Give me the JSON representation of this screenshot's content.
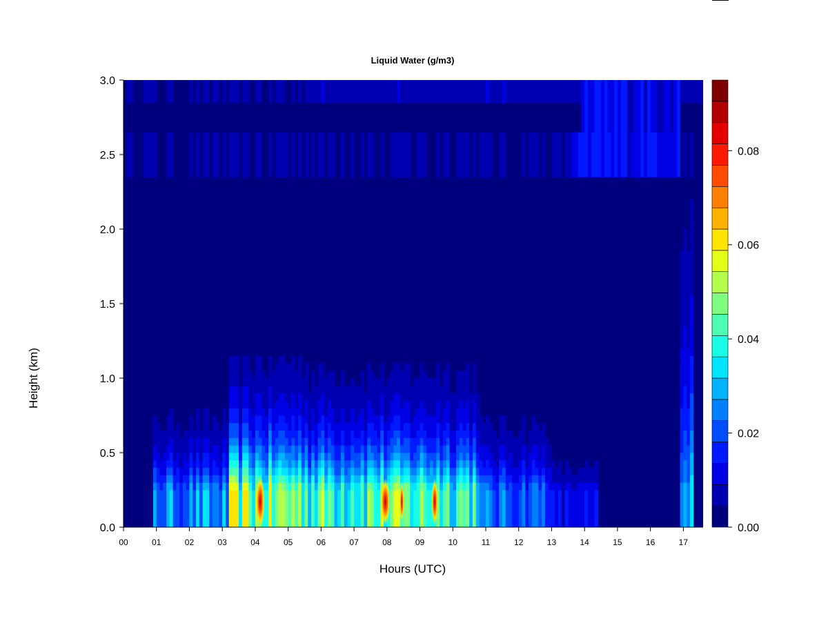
{
  "chart_data": {
    "type": "heatmap",
    "title": "Liquid Water (g/m3)",
    "xlabel": "Hours (UTC)",
    "ylabel": "Height (km)",
    "xlim": [
      0,
      17.6
    ],
    "ylim": [
      0,
      3.0
    ],
    "x_ticks": [
      "00",
      "01",
      "02",
      "03",
      "04",
      "05",
      "06",
      "07",
      "08",
      "09",
      "10",
      "11",
      "12",
      "13",
      "14",
      "15",
      "16",
      "17"
    ],
    "y_ticks": [
      "0.0",
      "0.5",
      "1.0",
      "1.5",
      "2.0",
      "2.5",
      "3.0"
    ],
    "colorbar": {
      "range": [
        0,
        0.095
      ],
      "ticks": [
        "0.00",
        "0.02",
        "0.04",
        "0.06",
        "0.08"
      ],
      "tick_values": [
        0,
        0.02,
        0.04,
        0.06,
        0.08
      ],
      "colors": [
        "#00007F",
        "#0000B2",
        "#0000E5",
        "#0019FF",
        "#004CFF",
        "#007FFF",
        "#00B2FF",
        "#00E5FF",
        "#19FFE5",
        "#4CFFB2",
        "#7FFF7F",
        "#B2FF4C",
        "#E5FF19",
        "#FFE500",
        "#FFB200",
        "#FF7F00",
        "#FF4C00",
        "#FF1900",
        "#E50000",
        "#B20000",
        "#7F0000"
      ]
    },
    "features": [
      {
        "x_range": [
          0.0,
          0.85
        ],
        "peak_value": 0.0,
        "top_km": 0.0
      },
      {
        "x_range": [
          0.85,
          3.2
        ],
        "peak_value": 0.045,
        "top_km": 0.85
      },
      {
        "x_range": [
          3.2,
          5.6
        ],
        "peak_value": 0.085,
        "top_km": 1.15
      },
      {
        "x_range": [
          5.6,
          10.8
        ],
        "peak_value": 0.078,
        "top_km": 1.1
      },
      {
        "x_range": [
          10.8,
          13.0
        ],
        "peak_value": 0.04,
        "top_km": 0.85
      },
      {
        "x_range": [
          13.0,
          14.4
        ],
        "peak_value": 0.02,
        "top_km": 0.5
      },
      {
        "x_range": [
          16.9,
          17.3
        ],
        "peak_value": 0.05,
        "top_km": 3.0
      }
    ]
  }
}
